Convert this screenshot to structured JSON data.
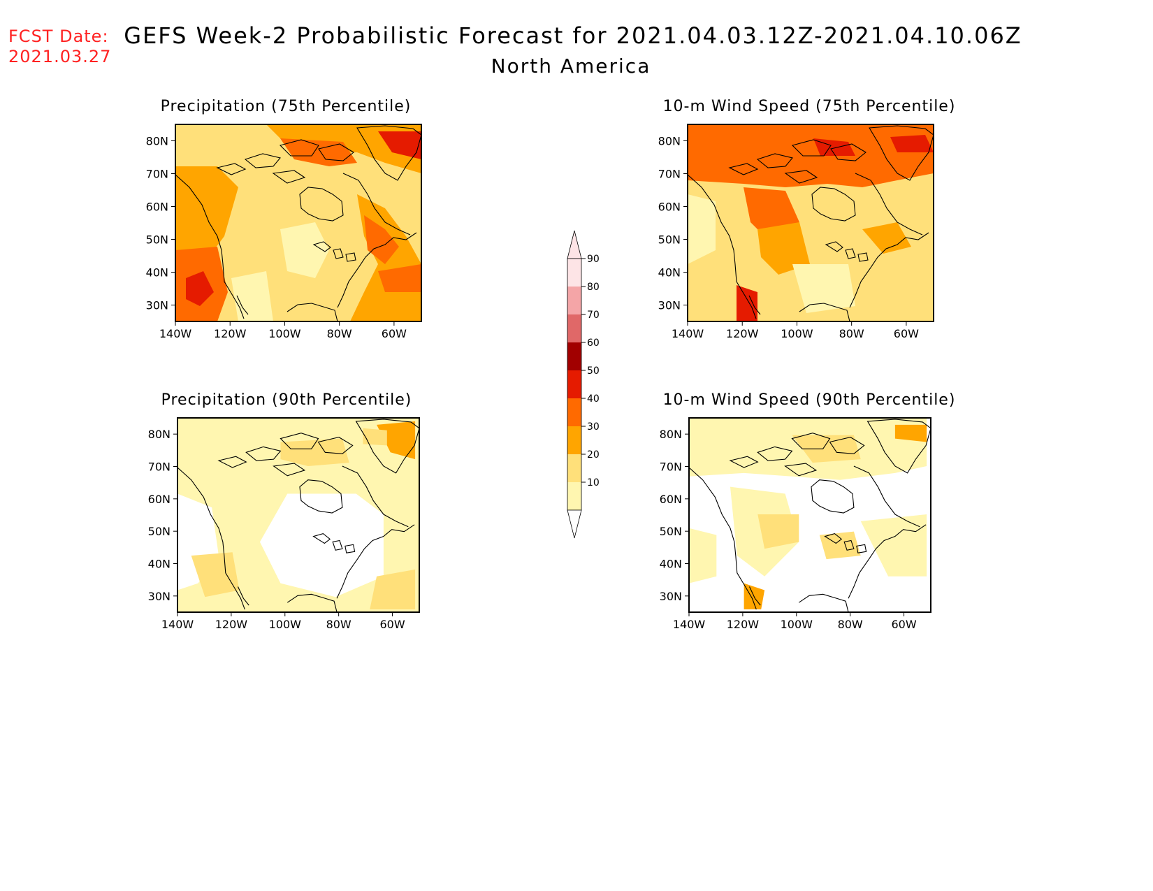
{
  "fcst": {
    "line1": "FCST Date:",
    "line2": "2021.03.27"
  },
  "title": {
    "main": "GEFS Week-2 Probabilistic Forecast for 2021.04.03.12Z-2021.04.10.06Z",
    "region": "North America"
  },
  "panels": [
    {
      "title": "Precipitation (75th Percentile)",
      "variable": "precipitation",
      "percentile": 75
    },
    {
      "title": "10-m Wind Speed (75th Percentile)",
      "variable": "wind",
      "percentile": 75
    },
    {
      "title": "Precipitation (90th Percentile)",
      "variable": "precipitation",
      "percentile": 90
    },
    {
      "title": "10-m Wind Speed (90th Percentile)",
      "variable": "wind",
      "percentile": 90
    }
  ],
  "axes": {
    "lat_labels": [
      "80N",
      "70N",
      "60N",
      "50N",
      "40N",
      "30N"
    ],
    "lon_labels": [
      "140W",
      "120W",
      "100W",
      "80W",
      "60W"
    ],
    "lat_range": [
      25,
      85
    ],
    "lon_range": [
      -140,
      -50
    ]
  },
  "colorbar": {
    "labels": [
      "90",
      "80",
      "70",
      "60",
      "50",
      "40",
      "30",
      "20",
      "10"
    ],
    "colors": [
      "#fde4e6",
      "#f4a5a7",
      "#e06868",
      "#a10000",
      "#e51b00",
      "#ff6a00",
      "#ffa500",
      "#ffe07a",
      "#fff6b0"
    ]
  },
  "colors": {
    "fcst_text": "#ff2222",
    "land_outline": "#000000"
  }
}
